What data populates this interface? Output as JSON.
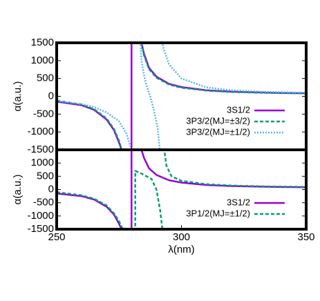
{
  "chart_data": [
    {
      "type": "line",
      "ylabel": "α(a.u.)",
      "xlim": [
        250,
        350
      ],
      "ylim": [
        -1500,
        1500
      ],
      "yticks": [
        1500,
        1000,
        500,
        0,
        -500,
        -1000,
        -1500
      ],
      "legend": "lower right",
      "series": [
        {
          "name": "3S1/2",
          "color": "#9400d3",
          "style": "solid",
          "x": [
            250,
            260,
            265,
            270,
            273,
            275,
            276.5,
            null,
            280,
            280,
            null,
            284,
            285,
            287,
            290,
            295,
            300,
            310,
            320,
            330,
            340,
            350
          ],
          "values": [
            -150,
            -250,
            -380,
            -650,
            -950,
            -1300,
            -1600,
            null,
            -1600,
            1600,
            null,
            1500,
            1200,
            800,
            550,
            350,
            260,
            170,
            130,
            110,
            95,
            85
          ]
        },
        {
          "name": "3P3/2(MJ=±3/2)",
          "color": "#009e73",
          "style": "dashed",
          "x": [
            250,
            260,
            265,
            270,
            273,
            275,
            276.5,
            null,
            284,
            285,
            287,
            290,
            295,
            300,
            310,
            320,
            335,
            350
          ],
          "values": [
            -120,
            -230,
            -360,
            -620,
            -920,
            -1250,
            -1600,
            null,
            1500,
            1150,
            760,
            520,
            330,
            240,
            160,
            120,
            95,
            80
          ]
        },
        {
          "name": "3P3/2(MJ=±1/2)",
          "color": "#56b4e9",
          "style": "dotted",
          "x": [
            250,
            260,
            265,
            270,
            275,
            278,
            279.5,
            280,
            null,
            283.5,
            284,
            285,
            286,
            287.5,
            289,
            290.5,
            291.5,
            null,
            292,
            293,
            295,
            300,
            310,
            320,
            335,
            350
          ],
          "values": [
            -130,
            -220,
            -300,
            -450,
            -700,
            -1050,
            -1400,
            -1600,
            null,
            1600,
            1000,
            600,
            300,
            0,
            -400,
            -900,
            -1600,
            null,
            1600,
            1300,
            900,
            500,
            250,
            170,
            120,
            100
          ]
        }
      ]
    },
    {
      "type": "line",
      "ylabel": "α(a.u.)",
      "xlabel": "λ(nm)",
      "xlim": [
        250,
        350
      ],
      "xticks": [
        250,
        300,
        350
      ],
      "ylim": [
        -1500,
        1500
      ],
      "yticks": [
        1000,
        500,
        0,
        -500,
        -1000,
        -1500
      ],
      "legend": "lower right",
      "series": [
        {
          "name": "3S1/2",
          "color": "#9400d3",
          "style": "solid",
          "x": [
            250,
            260,
            265,
            270,
            273,
            275,
            276.5,
            null,
            280,
            280,
            null,
            284,
            285,
            287,
            290,
            295,
            300,
            310,
            320,
            330,
            340,
            350
          ],
          "values": [
            -150,
            -250,
            -380,
            -650,
            -950,
            -1300,
            -1600,
            null,
            -1600,
            1600,
            null,
            1500,
            1200,
            800,
            550,
            350,
            260,
            170,
            130,
            110,
            95,
            85
          ]
        },
        {
          "name": "3P1/2(MJ=±1/2)",
          "color": "#009e73",
          "style": "dashed",
          "x": [
            250,
            260,
            265,
            270,
            273,
            275,
            277,
            null,
            281.5,
            281.5,
            283,
            285,
            288,
            290,
            291.5,
            292.5,
            null,
            293,
            294,
            296,
            300,
            310,
            320,
            335,
            350
          ],
          "values": [
            -100,
            -220,
            -350,
            -600,
            -900,
            -1200,
            -1600,
            null,
            -1600,
            700,
            650,
            550,
            400,
            0,
            -800,
            -1600,
            null,
            1600,
            900,
            500,
            330,
            200,
            150,
            115,
            100
          ]
        }
      ]
    }
  ]
}
